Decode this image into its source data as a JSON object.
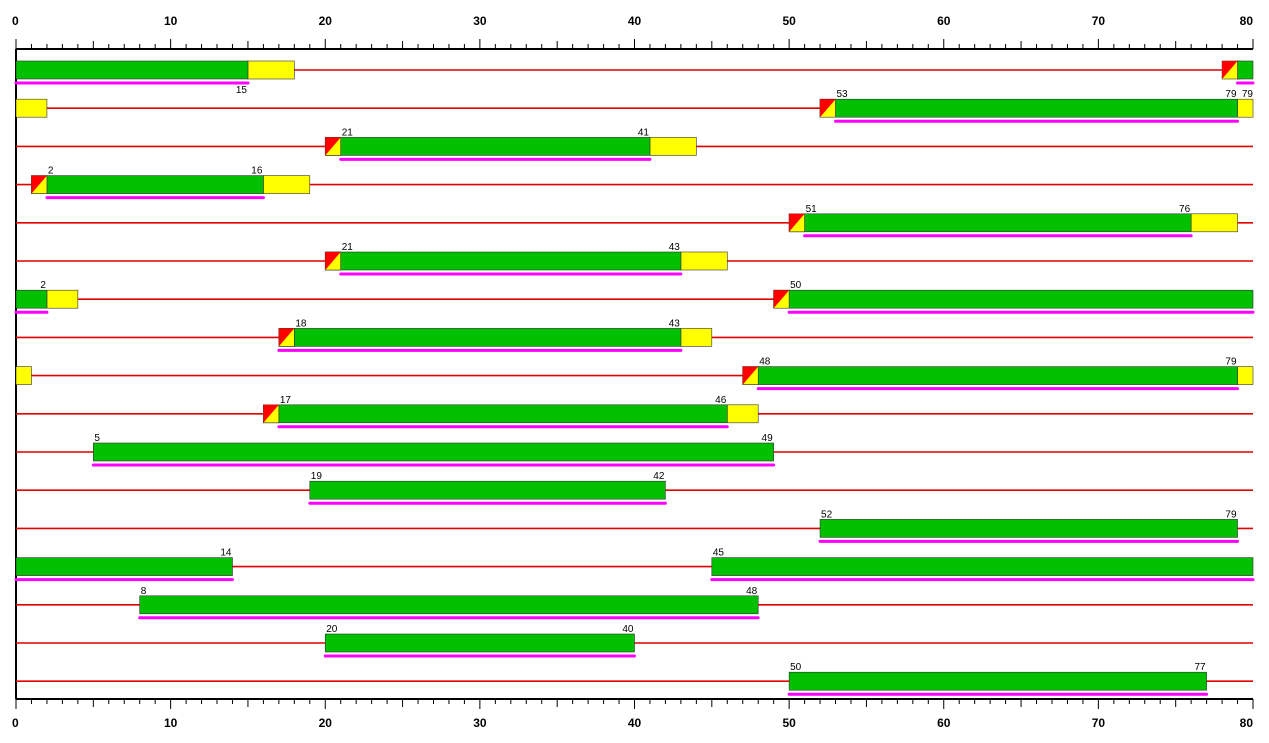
{
  "chart_data": {
    "type": "track-diagram",
    "axis": {
      "min": 0,
      "max": 80,
      "major_step": 10,
      "minor_step": 1,
      "tick_labels": [
        "0",
        "10",
        "20",
        "30",
        "40",
        "50",
        "60",
        "70",
        "80"
      ]
    },
    "colors": {
      "track": "#e00000",
      "green": "#00c000",
      "yellow": "#ffff00",
      "red": "#ff0000",
      "underline": "#ff00ff",
      "axis": "#000000"
    },
    "rows": [
      {
        "green": [
          [
            0,
            15
          ],
          [
            79,
            80
          ]
        ],
        "yellow": [
          [
            15,
            18
          ],
          [
            79,
            79
          ]
        ],
        "red_marker": [
          78
        ],
        "underline": [
          [
            0,
            15
          ],
          [
            79,
            80
          ]
        ],
        "labels": [
          {
            "x": 15,
            "text": "15",
            "pos": "below"
          }
        ]
      },
      {
        "green": [
          [
            53,
            79
          ]
        ],
        "yellow": [
          [
            0,
            2
          ],
          [
            52,
            53
          ],
          [
            79,
            80
          ]
        ],
        "red_marker": [
          52
        ],
        "underline": [
          [
            53,
            79
          ]
        ],
        "labels": [
          {
            "x": 53,
            "text": "53",
            "pos": "start"
          },
          {
            "x": 79,
            "text": "79",
            "pos": "end"
          },
          {
            "x": 79,
            "text": "79",
            "pos": "after"
          }
        ]
      },
      {
        "green": [
          [
            21,
            41
          ]
        ],
        "yellow": [
          [
            20,
            21
          ],
          [
            41,
            44
          ]
        ],
        "red_marker": [
          20
        ],
        "underline": [
          [
            21,
            41
          ]
        ],
        "labels": [
          {
            "x": 21,
            "text": "21",
            "pos": "start"
          },
          {
            "x": 41,
            "text": "41",
            "pos": "end"
          }
        ]
      },
      {
        "green": [
          [
            2,
            16
          ]
        ],
        "yellow": [
          [
            1,
            2
          ],
          [
            16,
            19
          ]
        ],
        "red_marker": [
          1
        ],
        "underline": [
          [
            2,
            16
          ]
        ],
        "labels": [
          {
            "x": 2,
            "text": "2",
            "pos": "start"
          },
          {
            "x": 16,
            "text": "16",
            "pos": "end"
          }
        ]
      },
      {
        "green": [
          [
            51,
            76
          ]
        ],
        "yellow": [
          [
            50,
            51
          ],
          [
            76,
            79
          ]
        ],
        "red_marker": [
          50
        ],
        "underline": [
          [
            51,
            76
          ]
        ],
        "labels": [
          {
            "x": 51,
            "text": "51",
            "pos": "start"
          },
          {
            "x": 76,
            "text": "76",
            "pos": "end"
          }
        ]
      },
      {
        "green": [
          [
            21,
            43
          ]
        ],
        "yellow": [
          [
            20,
            21
          ],
          [
            43,
            46
          ]
        ],
        "red_marker": [
          20
        ],
        "underline": [
          [
            21,
            43
          ]
        ],
        "labels": [
          {
            "x": 21,
            "text": "21",
            "pos": "start"
          },
          {
            "x": 43,
            "text": "43",
            "pos": "end"
          }
        ]
      },
      {
        "green": [
          [
            0,
            2
          ],
          [
            50,
            80
          ]
        ],
        "yellow": [
          [
            2,
            4
          ],
          [
            49,
            50
          ]
        ],
        "red_marker": [
          49
        ],
        "underline": [
          [
            0,
            2
          ],
          [
            50,
            80
          ]
        ],
        "labels": [
          {
            "x": 2,
            "text": "2",
            "pos": "end"
          },
          {
            "x": 50,
            "text": "50",
            "pos": "start"
          }
        ]
      },
      {
        "green": [
          [
            18,
            43
          ]
        ],
        "yellow": [
          [
            17,
            18
          ],
          [
            43,
            45
          ]
        ],
        "red_marker": [
          17
        ],
        "underline": [
          [
            17,
            43
          ]
        ],
        "labels": [
          {
            "x": 18,
            "text": "18",
            "pos": "start"
          },
          {
            "x": 43,
            "text": "43",
            "pos": "end"
          }
        ]
      },
      {
        "green": [
          [
            48,
            79
          ]
        ],
        "yellow": [
          [
            0,
            1
          ],
          [
            47,
            48
          ],
          [
            79,
            80
          ]
        ],
        "red_marker": [
          47
        ],
        "underline": [
          [
            48,
            79
          ]
        ],
        "labels": [
          {
            "x": 48,
            "text": "48",
            "pos": "start"
          },
          {
            "x": 79,
            "text": "79",
            "pos": "end"
          }
        ]
      },
      {
        "green": [
          [
            17,
            46
          ]
        ],
        "yellow": [
          [
            16,
            17
          ],
          [
            46,
            48
          ]
        ],
        "red_marker": [
          16
        ],
        "underline": [
          [
            17,
            46
          ]
        ],
        "labels": [
          {
            "x": 17,
            "text": "17",
            "pos": "start"
          },
          {
            "x": 46,
            "text": "46",
            "pos": "end"
          }
        ]
      },
      {
        "green": [
          [
            5,
            49
          ]
        ],
        "yellow": [],
        "red_marker": [],
        "underline": [
          [
            5,
            49
          ]
        ],
        "labels": [
          {
            "x": 5,
            "text": "5",
            "pos": "start"
          },
          {
            "x": 49,
            "text": "49",
            "pos": "end"
          }
        ]
      },
      {
        "green": [
          [
            19,
            42
          ]
        ],
        "yellow": [],
        "red_marker": [],
        "underline": [
          [
            19,
            42
          ]
        ],
        "labels": [
          {
            "x": 19,
            "text": "19",
            "pos": "start"
          },
          {
            "x": 42,
            "text": "42",
            "pos": "end"
          }
        ]
      },
      {
        "green": [
          [
            52,
            79
          ]
        ],
        "yellow": [],
        "red_marker": [],
        "underline": [
          [
            52,
            79
          ]
        ],
        "labels": [
          {
            "x": 52,
            "text": "52",
            "pos": "start"
          },
          {
            "x": 79,
            "text": "79",
            "pos": "end"
          }
        ]
      },
      {
        "green": [
          [
            0,
            14
          ],
          [
            45,
            80
          ]
        ],
        "yellow": [],
        "red_marker": [],
        "underline": [
          [
            0,
            14
          ],
          [
            45,
            80
          ]
        ],
        "labels": [
          {
            "x": 14,
            "text": "14",
            "pos": "end"
          },
          {
            "x": 45,
            "text": "45",
            "pos": "start"
          }
        ]
      },
      {
        "green": [
          [
            8,
            48
          ]
        ],
        "yellow": [],
        "red_marker": [],
        "underline": [
          [
            8,
            48
          ]
        ],
        "labels": [
          {
            "x": 8,
            "text": "8",
            "pos": "start"
          },
          {
            "x": 48,
            "text": "48",
            "pos": "end"
          }
        ]
      },
      {
        "green": [
          [
            20,
            40
          ]
        ],
        "yellow": [],
        "red_marker": [],
        "underline": [
          [
            20,
            40
          ]
        ],
        "labels": [
          {
            "x": 20,
            "text": "20",
            "pos": "start"
          },
          {
            "x": 40,
            "text": "40",
            "pos": "end"
          }
        ]
      },
      {
        "green": [
          [
            50,
            77
          ]
        ],
        "yellow": [],
        "red_marker": [],
        "underline": [
          [
            50,
            77
          ]
        ],
        "labels": [
          {
            "x": 50,
            "text": "50",
            "pos": "start"
          },
          {
            "x": 77,
            "text": "77",
            "pos": "end"
          }
        ]
      }
    ]
  }
}
